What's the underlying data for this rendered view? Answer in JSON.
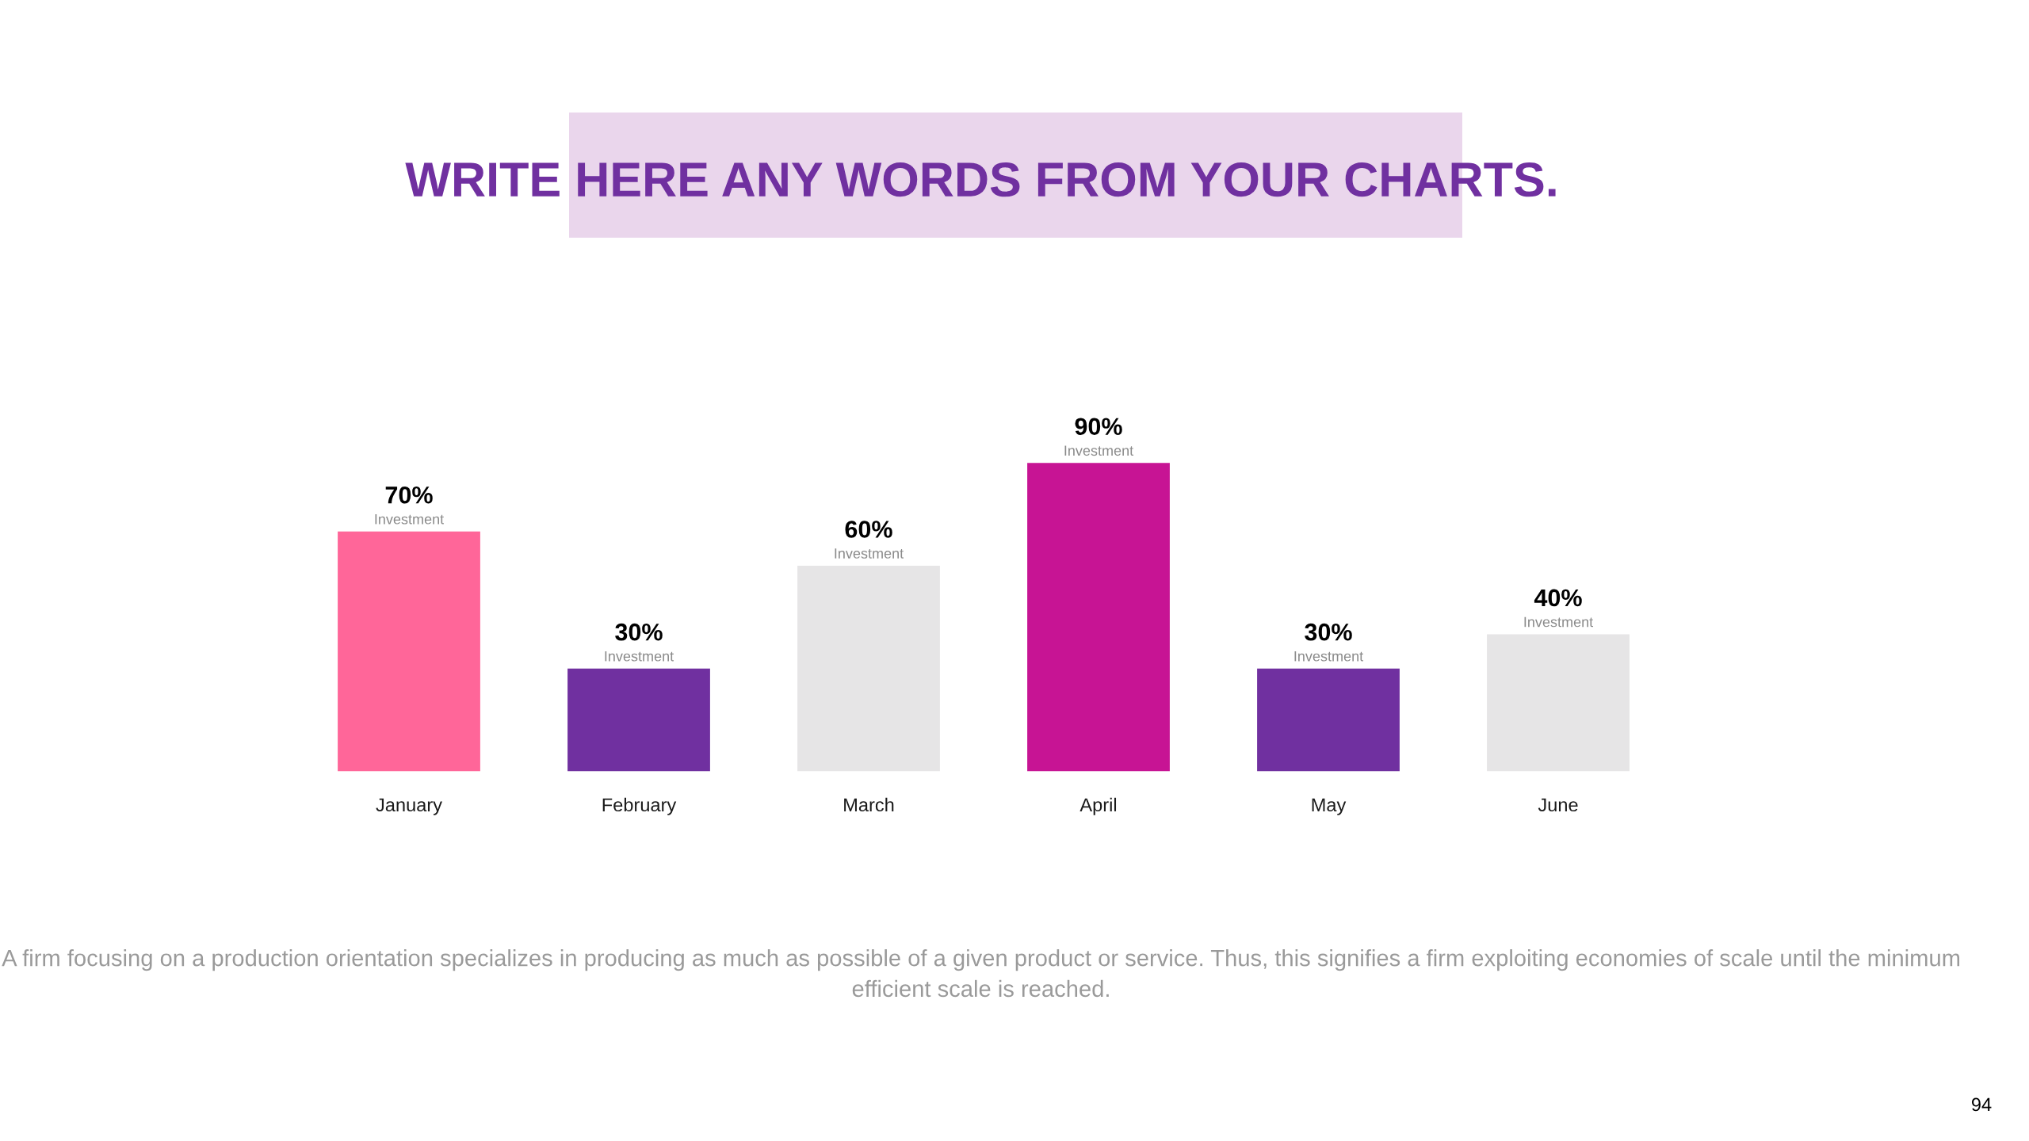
{
  "chart_data": {
    "type": "bar",
    "title": "WRITE HERE ANY WORDS FROM YOUR CHARTS.",
    "categories": [
      "January",
      "February",
      "March",
      "April",
      "May",
      "June"
    ],
    "values": [
      70,
      30,
      60,
      90,
      30,
      40
    ],
    "colors": [
      "#ff6699",
      "#7030a0",
      "#e6e5e6",
      "#c71494",
      "#7030a0",
      "#e6e5e6"
    ],
    "value_labels": [
      "70%",
      "30%",
      "60%",
      "90%",
      "30%",
      "40%"
    ],
    "annotations": [
      {
        "text": "Investment",
        "x": "January",
        "y": 70
      },
      {
        "text": "Investment",
        "x": "February",
        "y": 30
      },
      {
        "text": "Investment",
        "x": "March",
        "y": 60
      },
      {
        "text": "Investment",
        "x": "April",
        "y": 90
      },
      {
        "text": "Investment",
        "x": "May",
        "y": 30
      },
      {
        "text": "Investment",
        "x": "June",
        "y": 40
      },
      "A firm focusing on a production orientation specializes in producing as much as possible of a given product or service. Thus, this signifies a firm exploiting economies of scale until the minimum efficient scale is reached.",
      "94"
    ]
  }
}
